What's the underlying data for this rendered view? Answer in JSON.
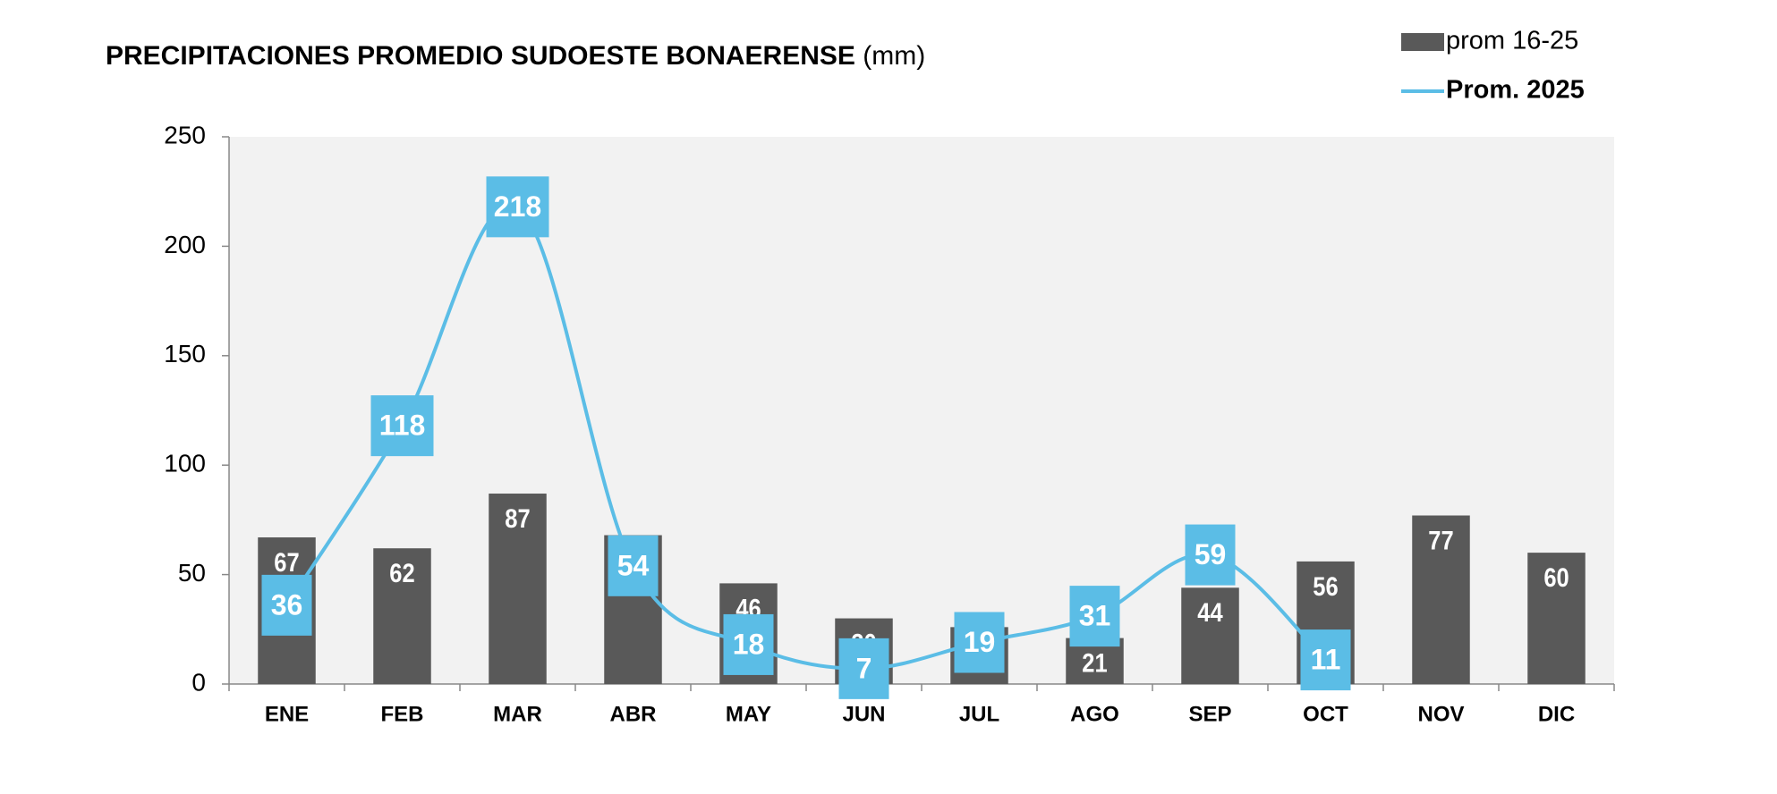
{
  "chart_data": {
    "type": "bar-line",
    "title": "PRECIPITACIONES PROMEDIO SUDOESTE BONAERENSE",
    "title_suffix": "(mm)",
    "categories": [
      "ENE",
      "FEB",
      "MAR",
      "ABR",
      "MAY",
      "JUN",
      "JUL",
      "AGO",
      "SEP",
      "OCT",
      "NOV",
      "DIC"
    ],
    "series": [
      {
        "name": "prom 16-25",
        "type": "bar",
        "color": "#595959",
        "values": [
          67,
          62,
          87,
          68,
          46,
          30,
          26,
          21,
          44,
          56,
          77,
          60
        ]
      },
      {
        "name": "Prom. 2025",
        "type": "line",
        "color": "#5bbde6",
        "values": [
          36,
          118,
          218,
          54,
          18,
          7,
          19,
          31,
          59,
          11,
          null,
          null
        ]
      }
    ],
    "ylim": [
      0,
      250
    ],
    "yticks": [
      0,
      50,
      100,
      150,
      200,
      250
    ],
    "grid": false,
    "legend": "top-right"
  }
}
